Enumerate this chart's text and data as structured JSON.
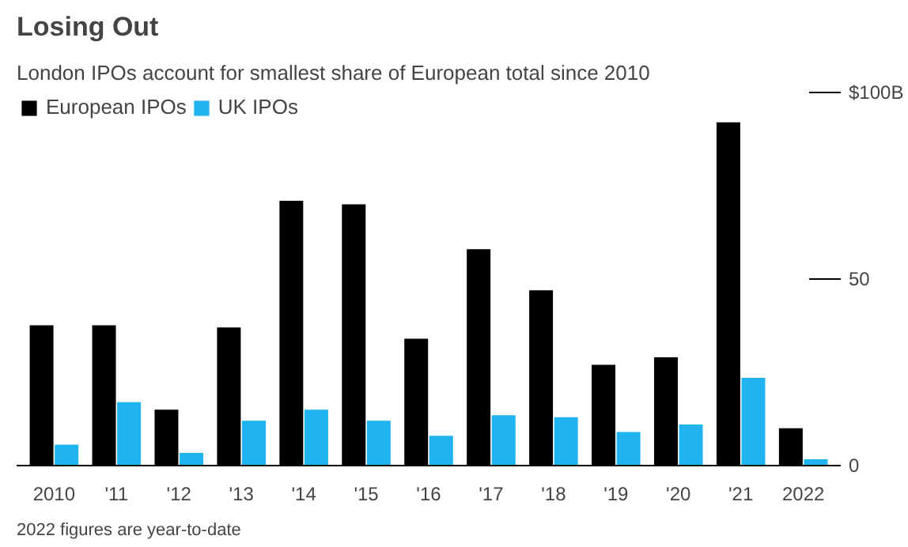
{
  "chart_data": {
    "type": "bar",
    "title": "Losing Out",
    "subtitle": "London IPOs account for smallest share of European total since 2010",
    "categories": [
      "2010",
      "'11",
      "'12",
      "'13",
      "'14",
      "'15",
      "'16",
      "'17",
      "'18",
      "'19",
      "'20",
      "'21",
      "2022"
    ],
    "series": [
      {
        "name": "European IPOs",
        "color": "#000000",
        "values": [
          37.6,
          37.6,
          15,
          37,
          71,
          70,
          34,
          58,
          47,
          27,
          29,
          92,
          10
        ]
      },
      {
        "name": "UK IPOs",
        "color": "#1fb4f0",
        "values": [
          5.6,
          17,
          3.4,
          12,
          15,
          12,
          8,
          13.5,
          13,
          9,
          11,
          23.5,
          1.7
        ]
      }
    ],
    "ylim": [
      0,
      100
    ],
    "yticks": [
      0,
      50,
      {
        "value": 100,
        "label": "$100B"
      }
    ],
    "grid": false,
    "legend": "top left",
    "annotations": [
      "2022 figures are year-to-date"
    ]
  }
}
